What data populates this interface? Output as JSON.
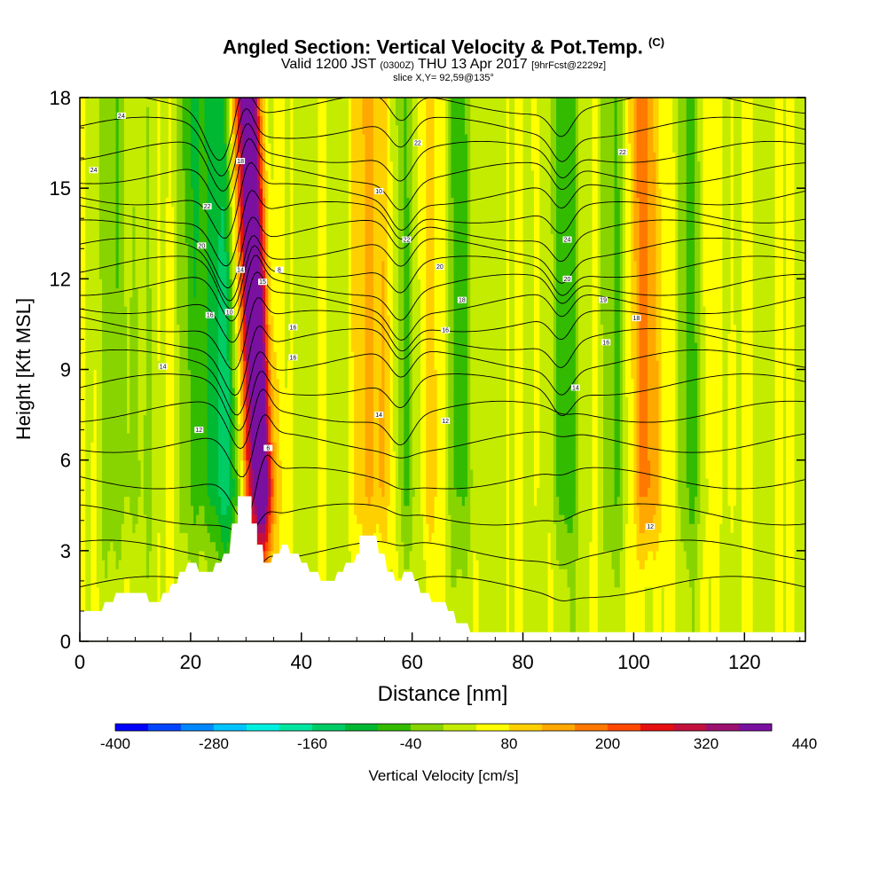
{
  "chart_data": {
    "type": "heatmap",
    "title": "Angled Section: Vertical Velocity & Pot.Temp.",
    "title_unit": "(C)",
    "subtitle_a": "Valid 1200 JST",
    "subtitle_z": "(0300Z)",
    "subtitle_b": "THU 13 Apr 2017",
    "subtitle_fcst": "[9hrFcst@2229z]",
    "slice_label": "slice X,Y= 92,59@135°",
    "xlabel": "Distance [nm]",
    "ylabel": "Height [Kft MSL]",
    "xlim": [
      0,
      131
    ],
    "ylim": [
      0,
      18
    ],
    "xticks": [
      0,
      20,
      40,
      60,
      80,
      100,
      120
    ],
    "yticks": [
      0,
      3,
      6,
      9,
      12,
      15,
      18
    ],
    "grid": false,
    "colorbar": {
      "label": "Vertical Velocity [cm/s]",
      "placement": "bottom",
      "ticks": [
        -400,
        -280,
        -160,
        -40,
        80,
        200,
        320,
        440
      ],
      "min": -400,
      "step": 40,
      "colors": [
        "#0000ff",
        "#0044ff",
        "#0088ff",
        "#00c4ff",
        "#00f0e0",
        "#00e6a0",
        "#00cc66",
        "#00b832",
        "#33bb00",
        "#88d400",
        "#c4ec00",
        "#ffff00",
        "#ffd000",
        "#ffa800",
        "#ff7800",
        "#ff4800",
        "#e61010",
        "#c4103c",
        "#9c1070",
        "#7a10a0"
      ]
    },
    "updraft_columns": [
      {
        "x": 31.5,
        "width": 2.2,
        "peak": 340
      },
      {
        "x": 33.0,
        "width": 1.2,
        "peak": 260
      },
      {
        "x": 55.0,
        "width": 3.5,
        "peak": 120
      },
      {
        "x": 62.5,
        "width": 2.5,
        "peak": 60
      },
      {
        "x": 84.0,
        "width": 2.0,
        "peak": 40
      },
      {
        "x": 102.5,
        "width": 1.8,
        "peak": 160
      },
      {
        "x": 116.0,
        "width": 2.0,
        "peak": 30
      }
    ],
    "downdraft_columns": [
      {
        "x": 28.0,
        "width": 3.0,
        "peak": -200
      },
      {
        "x": 58.5,
        "width": 1.8,
        "peak": -170
      },
      {
        "x": 22.0,
        "width": 2.0,
        "peak": -80
      },
      {
        "x": 8.0,
        "width": 2.5,
        "peak": -60
      },
      {
        "x": 87.0,
        "width": 2.0,
        "peak": -110
      },
      {
        "x": 97.0,
        "width": 1.8,
        "peak": -60
      },
      {
        "x": 110.5,
        "width": 1.5,
        "peak": -70
      },
      {
        "x": 69.0,
        "width": 2.0,
        "peak": -70
      }
    ],
    "potential_temperature": {
      "units": "C",
      "contour_labels": [
        {
          "x": 7.5,
          "y": 17.4,
          "value": "24"
        },
        {
          "x": 2.5,
          "y": 15.6,
          "value": "24"
        },
        {
          "x": 23.0,
          "y": 14.4,
          "value": "22"
        },
        {
          "x": 22.0,
          "y": 13.1,
          "value": "20"
        },
        {
          "x": 29.0,
          "y": 15.9,
          "value": "18"
        },
        {
          "x": 29.0,
          "y": 12.3,
          "value": "14"
        },
        {
          "x": 27.0,
          "y": 10.9,
          "value": "10"
        },
        {
          "x": 23.5,
          "y": 10.8,
          "value": "16"
        },
        {
          "x": 15.0,
          "y": 9.1,
          "value": "14"
        },
        {
          "x": 21.5,
          "y": 7.0,
          "value": "12"
        },
        {
          "x": 33.0,
          "y": 11.9,
          "value": "15"
        },
        {
          "x": 36.0,
          "y": 12.3,
          "value": "8"
        },
        {
          "x": 38.5,
          "y": 10.4,
          "value": "16"
        },
        {
          "x": 38.5,
          "y": 9.4,
          "value": "16"
        },
        {
          "x": 34.0,
          "y": 6.4,
          "value": "6"
        },
        {
          "x": 54.0,
          "y": 14.9,
          "value": "10"
        },
        {
          "x": 61.0,
          "y": 16.5,
          "value": "22"
        },
        {
          "x": 59.0,
          "y": 13.3,
          "value": "22"
        },
        {
          "x": 65.0,
          "y": 12.4,
          "value": "20"
        },
        {
          "x": 69.0,
          "y": 11.3,
          "value": "18"
        },
        {
          "x": 66.0,
          "y": 10.3,
          "value": "16"
        },
        {
          "x": 54.0,
          "y": 7.5,
          "value": "14"
        },
        {
          "x": 66.0,
          "y": 7.3,
          "value": "12"
        },
        {
          "x": 98.0,
          "y": 16.2,
          "value": "22"
        },
        {
          "x": 88.0,
          "y": 13.3,
          "value": "24"
        },
        {
          "x": 88.0,
          "y": 12.0,
          "value": "20"
        },
        {
          "x": 94.5,
          "y": 11.3,
          "value": "19"
        },
        {
          "x": 100.5,
          "y": 10.7,
          "value": "18"
        },
        {
          "x": 95.0,
          "y": 9.9,
          "value": "16"
        },
        {
          "x": 89.5,
          "y": 8.4,
          "value": "14"
        },
        {
          "x": 103.0,
          "y": 3.8,
          "value": "12"
        }
      ]
    },
    "terrain_kft": [
      [
        0,
        1.0
      ],
      [
        4,
        1.0
      ],
      [
        4.5,
        1.3
      ],
      [
        6,
        1.3
      ],
      [
        6.5,
        1.6
      ],
      [
        12,
        1.6
      ],
      [
        12.5,
        1.3
      ],
      [
        14.5,
        1.3
      ],
      [
        15,
        1.6
      ],
      [
        16,
        1.6
      ],
      [
        16.5,
        1.9
      ],
      [
        17.5,
        1.9
      ],
      [
        18,
        2.3
      ],
      [
        19,
        2.3
      ],
      [
        19.5,
        2.6
      ],
      [
        21,
        2.6
      ],
      [
        21.5,
        2.3
      ],
      [
        24,
        2.3
      ],
      [
        24.5,
        2.6
      ],
      [
        25.5,
        2.6
      ],
      [
        26,
        2.9
      ],
      [
        27,
        2.9
      ],
      [
        27.5,
        3.9
      ],
      [
        28.5,
        3.9
      ],
      [
        28.5,
        4.8
      ],
      [
        31,
        4.8
      ],
      [
        31,
        3.9
      ],
      [
        32,
        3.9
      ],
      [
        32,
        3.2
      ],
      [
        33,
        3.2
      ],
      [
        33.2,
        2.6
      ],
      [
        34.5,
        2.6
      ],
      [
        35,
        2.9
      ],
      [
        36,
        2.9
      ],
      [
        36.5,
        3.2
      ],
      [
        37.5,
        3.2
      ],
      [
        38,
        2.9
      ],
      [
        39.5,
        2.9
      ],
      [
        40,
        2.6
      ],
      [
        41,
        2.6
      ],
      [
        41.5,
        2.3
      ],
      [
        43,
        2.3
      ],
      [
        43.5,
        2.0
      ],
      [
        46,
        2.0
      ],
      [
        46.5,
        2.3
      ],
      [
        47.5,
        2.3
      ],
      [
        48,
        2.6
      ],
      [
        49.5,
        2.6
      ],
      [
        50,
        2.9
      ],
      [
        50.5,
        2.9
      ],
      [
        50.5,
        3.5
      ],
      [
        53.5,
        3.5
      ],
      [
        54,
        2.9
      ],
      [
        55,
        2.9
      ],
      [
        55.5,
        2.3
      ],
      [
        56.5,
        2.3
      ],
      [
        57,
        2.0
      ],
      [
        58,
        2.0
      ],
      [
        58.5,
        2.3
      ],
      [
        60,
        2.3
      ],
      [
        60.5,
        2.0
      ],
      [
        61,
        2.0
      ],
      [
        61.5,
        1.6
      ],
      [
        63,
        1.6
      ],
      [
        63.5,
        1.3
      ],
      [
        66,
        1.3
      ],
      [
        66.5,
        1.0
      ],
      [
        67.5,
        1.0
      ],
      [
        68,
        0.6
      ],
      [
        70,
        0.6
      ],
      [
        70.5,
        0.3
      ],
      [
        131,
        0.3
      ]
    ]
  }
}
